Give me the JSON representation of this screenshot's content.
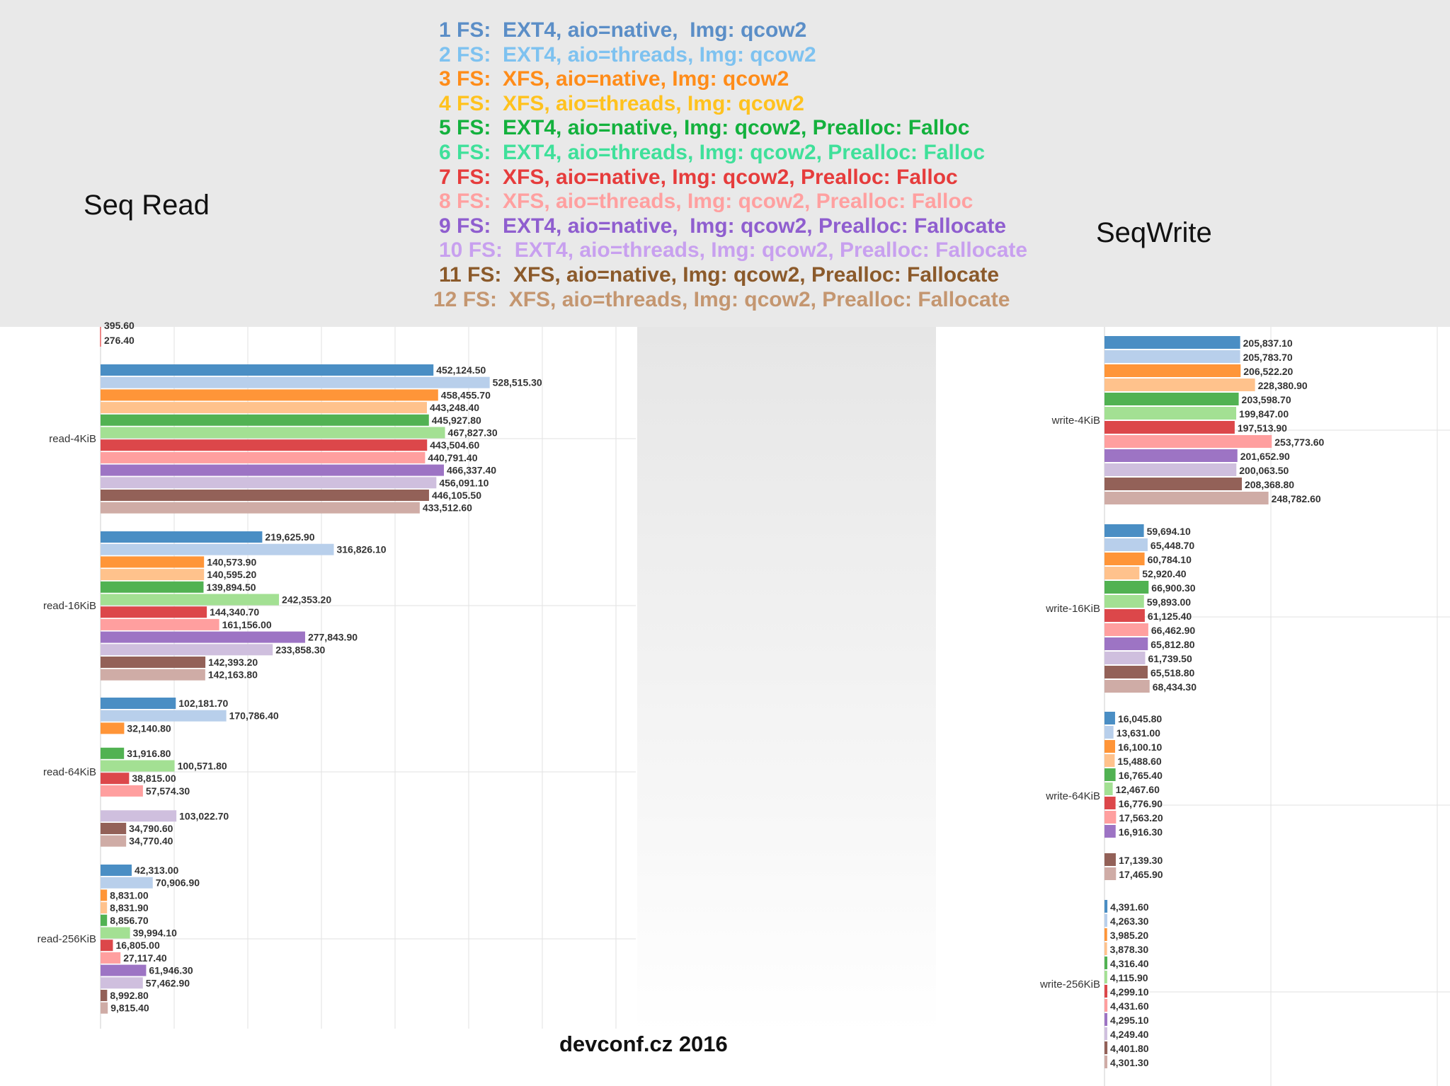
{
  "series_colors": [
    "#4a8ec4",
    "#b8cfeb",
    "#ff9538",
    "#ffc28c",
    "#51b252",
    "#a3e093",
    "#dc474a",
    "#ff9f9f",
    "#9d74c4",
    "#cfbfde",
    "#936158",
    "#cfaca6"
  ],
  "legend_colors": [
    "#5b8ec7",
    "#7ec2f0",
    "#ff8c19",
    "#ffc21e",
    "#13b13d",
    "#3fe09a",
    "#e63c3c",
    "#ffa0a0",
    "#8f5ecf",
    "#c8a0ef",
    "#8b5a2b",
    "#c49670"
  ],
  "legend_items": [
    "1 FS:  EXT4, aio=native,  Img: qcow2",
    "2 FS:  EXT4, aio=threads, Img: qcow2",
    "3 FS:  XFS, aio=native, Img: qcow2",
    "4 FS:  XFS, aio=threads, Img: qcow2",
    "5 FS:  EXT4, aio=native, Img: qcow2, Prealloc: Falloc",
    "6 FS:  EXT4, aio=threads, Img: qcow2, Prealloc: Falloc",
    "7 FS:  XFS, aio=native, Img: qcow2, Prealloc: Falloc",
    "8 FS:  XFS, aio=threads, Img: qcow2, Prealloc: Falloc",
    "9 FS:  EXT4, aio=native,  Img: qcow2, Prealloc: Fallocate",
    "10 FS:  EXT4, aio=threads, Img: qcow2, Prealloc: Fallocate",
    "11 FS:  XFS, aio=native, Img: qcow2, Prealloc: Fallocate",
    "12 FS:  XFS, aio=threads, Img: qcow2, Prealloc: Fallocate"
  ],
  "titles": {
    "seq_read": "Seq Read",
    "seq_write": "SeqWrite"
  },
  "footer": "devconf.cz 2016",
  "chart_data": [
    {
      "type": "bar",
      "orientation": "horizontal",
      "title": "Seq Read",
      "categories": [
        "read-4KiB",
        "read-16KiB",
        "read-64KiB",
        "read-256KiB"
      ],
      "grid": true,
      "partial_visible_labels": [
        "395.60",
        "276.40"
      ],
      "values": [
        [
          452124.5,
          528515.3,
          458455.7,
          443248.4,
          445927.8,
          467827.3,
          443504.6,
          440791.4,
          466337.4,
          456091.1,
          446105.5,
          433512.6
        ],
        [
          219625.9,
          316826.1,
          140573.9,
          140595.2,
          139894.5,
          242353.2,
          144340.7,
          161156.0,
          277843.9,
          233858.3,
          142393.2,
          142163.8
        ],
        [
          102181.7,
          170786.4,
          32140.8,
          null,
          31916.8,
          100571.8,
          38815.0,
          57574.3,
          null,
          103022.7,
          34790.6,
          34770.4
        ],
        [
          42313.0,
          70906.9,
          8831.0,
          8831.9,
          8856.7,
          39994.1,
          16805.0,
          27117.4,
          61946.3,
          57462.9,
          8992.8,
          9815.4
        ]
      ],
      "value_labels": [
        [
          "452,124.50",
          "528,515.30",
          "458,455.70",
          "443,248.40",
          "445,927.80",
          "467,827.30",
          "443,504.60",
          "440,791.40",
          "466,337.40",
          "456,091.10",
          "446,105.50",
          "433,512.60"
        ],
        [
          "219,625.90",
          "316,826.10",
          "140,573.90",
          "140,595.20",
          "139,894.50",
          "242,353.20",
          "144,340.70",
          "161,156.00",
          "277,843.90",
          "233,858.30",
          "142,393.20",
          "142,163.80"
        ],
        [
          "102,181.70",
          "170,786.40",
          "32,140.80",
          null,
          "31,916.80",
          "100,571.80",
          "38,815.00",
          "57,574.30",
          null,
          "103,022.70",
          "34,790.60",
          "34,770.40"
        ],
        [
          "42,313.00",
          "70,906.90",
          "8,831.00",
          "8,831.90",
          "8,856.70",
          "39,994.10",
          "16,805.00",
          "27,117.40",
          "61,946.30",
          "57,462.90",
          "8,992.80",
          "9,815.40"
        ]
      ]
    },
    {
      "type": "bar",
      "orientation": "horizontal",
      "title": "SeqWrite",
      "categories": [
        "write-4KiB",
        "write-16KiB",
        "write-64KiB",
        "write-256KiB"
      ],
      "grid": true,
      "values": [
        [
          205837.1,
          205783.7,
          206522.2,
          228380.9,
          203598.7,
          199847.0,
          197513.9,
          253773.6,
          201652.9,
          200063.5,
          208368.8,
          248782.6
        ],
        [
          59694.1,
          65448.7,
          60784.1,
          52920.4,
          66900.3,
          59893.0,
          61125.4,
          66462.9,
          65812.8,
          61739.5,
          65518.8,
          68434.3
        ],
        [
          16045.8,
          13631.0,
          16100.1,
          15488.6,
          16765.4,
          12467.6,
          16776.9,
          17563.2,
          16916.3,
          null,
          17139.3,
          17465.9
        ],
        [
          4391.6,
          4263.3,
          3985.2,
          3878.3,
          4316.4,
          4115.9,
          4299.1,
          4431.6,
          4295.1,
          4249.4,
          4401.8,
          4301.3
        ]
      ],
      "value_labels": [
        [
          "205,837.10",
          "205,783.70",
          "206,522.20",
          "228,380.90",
          "203,598.70",
          "199,847.00",
          "197,513.90",
          "253,773.60",
          "201,652.90",
          "200,063.50",
          "208,368.80",
          "248,782.60"
        ],
        [
          "59,694.10",
          "65,448.70",
          "60,784.10",
          "52,920.40",
          "66,900.30",
          "59,893.00",
          "61,125.40",
          "66,462.90",
          "65,812.80",
          "61,739.50",
          "65,518.80",
          "68,434.30"
        ],
        [
          "16,045.80",
          "13,631.00",
          "16,100.10",
          "15,488.60",
          "16,765.40",
          "12,467.60",
          "16,776.90",
          "17,563.20",
          "16,916.30",
          null,
          "17,139.30",
          "17,465.90"
        ],
        [
          "4,391.60",
          "4,263.30",
          "3,985.20",
          "3,878.30",
          "4,316.40",
          "4,115.90",
          "4,299.10",
          "4,431.60",
          "4,295.10",
          "4,249.40",
          "4,401.80",
          "4,301.30"
        ]
      ]
    }
  ]
}
